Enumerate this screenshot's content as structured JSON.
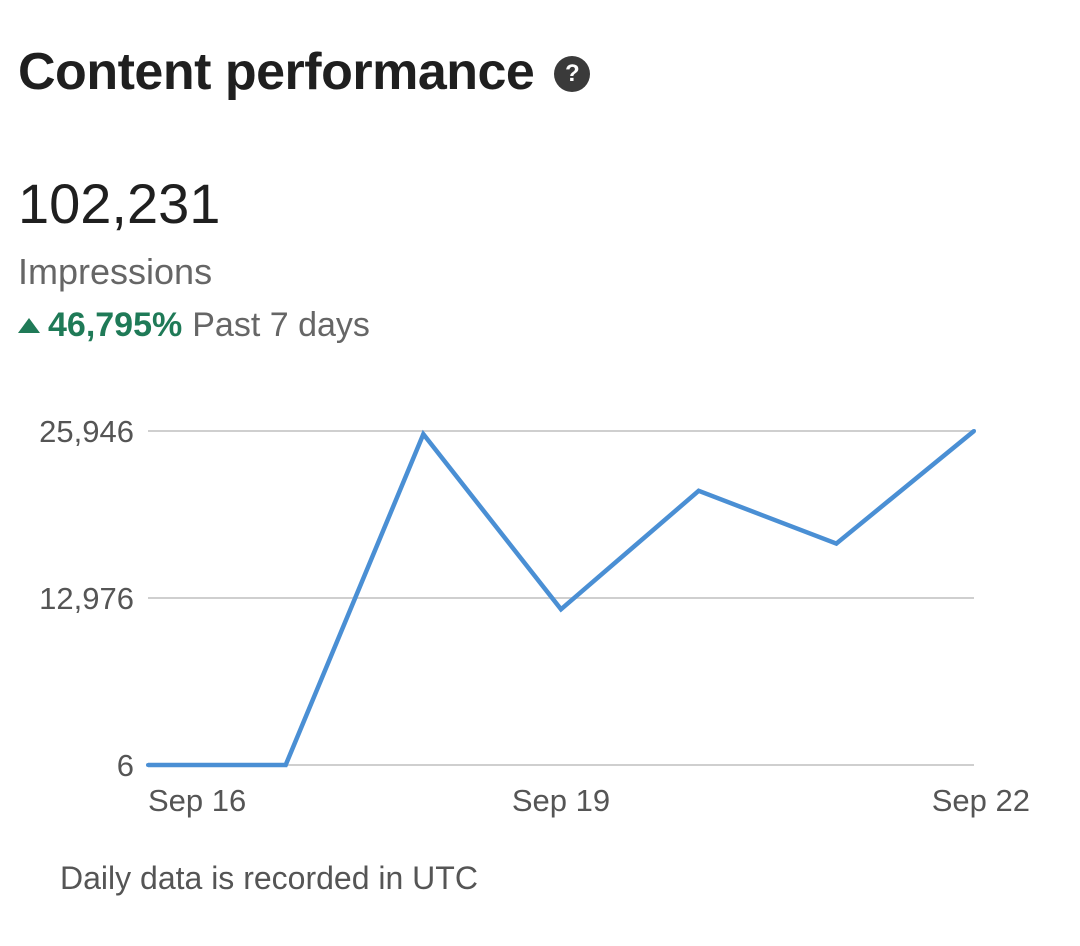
{
  "header": {
    "title": "Content performance",
    "help_icon": "?"
  },
  "summary": {
    "value": "102,231",
    "label": "Impressions",
    "change_value": "46,795%",
    "change_period": "Past 7 days",
    "change_direction": "up",
    "change_color": "#1f7a57"
  },
  "chart_data": {
    "type": "line",
    "x": [
      "Sep 16",
      "Sep 17",
      "Sep 18",
      "Sep 19",
      "Sep 20",
      "Sep 21",
      "Sep 22"
    ],
    "values": [
      6,
      6,
      25700,
      12100,
      21300,
      17200,
      25946
    ],
    "xticks": [
      "Sep 16",
      "Sep 19",
      "Sep 22"
    ],
    "yticks": [
      6,
      12976,
      25946
    ],
    "ytick_labels": [
      "6",
      "12,976",
      "25,946"
    ],
    "ylim": [
      6,
      25946
    ],
    "grid": true,
    "line_color": "#4a8fd4",
    "grid_color": "#cfcfcf"
  },
  "footer": {
    "note": "Daily data is recorded in UTC"
  }
}
